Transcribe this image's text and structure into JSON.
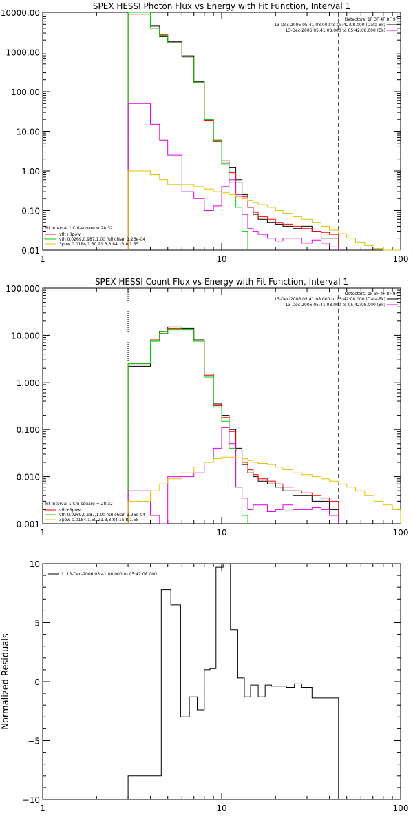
{
  "chart_data": [
    {
      "type": "line",
      "title": "SPEX HESSI Photon Flux vs Energy with Fit Function, Interval 1",
      "xscale": "log",
      "yscale": "log",
      "xlim": [
        1,
        100
      ],
      "ylim": [
        0.01,
        10000
      ],
      "xticks": [
        {
          "v": 1,
          "label": "1"
        },
        {
          "v": 10,
          "label": "10"
        },
        {
          "v": 100,
          "label": "100"
        }
      ],
      "yticks": [
        {
          "v": 10000,
          "label": "10000.00"
        },
        {
          "v": 1000,
          "label": "1000.00"
        },
        {
          "v": 100,
          "label": "100.00"
        },
        {
          "v": 10,
          "label": "10.00"
        },
        {
          "v": 1,
          "label": "1.00"
        },
        {
          "v": 0.1,
          "label": "0.10"
        },
        {
          "v": 0.01,
          "label": "0.01"
        }
      ],
      "vlines": [
        {
          "x": 3,
          "style": "dotted"
        },
        {
          "x": 45,
          "style": "dashed"
        }
      ],
      "annotations": {
        "top_right": [
          "Detectors: 1F 3F 4F 8F 9F",
          "13-Dec-2006 05:41:08.000 to 05:42:08.000 (Data-Bk)",
          "13-Dec-2006 05:41:08.000 to 05:42:08.000 (Bk)"
        ],
        "bottom_left": [
          "Fit Interval 1   Chi-square = 28.32",
          "vth+3pow",
          "vth 0.0269,0.987,1.00  full chian 1.26e-04",
          "3pow 0.0184,1.50,21.3,8.84,15.8,1.55"
        ]
      },
      "edges": [
        3,
        3.5,
        4,
        4.5,
        5,
        6,
        7,
        8,
        9,
        10,
        11,
        12,
        13,
        14,
        15,
        16,
        18,
        20,
        22,
        25,
        28,
        32,
        36,
        40,
        45,
        50,
        56,
        63,
        71,
        80,
        90,
        100
      ],
      "series": [
        {
          "name": "Data-Bk",
          "color": "#000000",
          "values": [
            9000,
            9000,
            4500,
            2500,
            1800,
            800,
            180,
            20,
            6,
            1.8,
            1.2,
            0.6,
            0.25,
            0.12,
            0.08,
            0.06,
            0.05,
            0.045,
            0.04,
            0.035,
            0.04,
            0.03,
            0.02,
            0.02
          ]
        },
        {
          "name": "vth+3pow",
          "color": "#ff0000",
          "values": [
            9000,
            9000,
            4000,
            2700,
            1700,
            750,
            170,
            19,
            5.5,
            1.6,
            0.9,
            0.5,
            0.22,
            0.12,
            0.09,
            0.07,
            0.06,
            0.05,
            0.045,
            0.04,
            0.035,
            0.03,
            0.028,
            0.025
          ]
        },
        {
          "name": "vth",
          "color": "#00d000",
          "values": [
            10000,
            10000,
            4000,
            2600,
            1700,
            750,
            170,
            20,
            6,
            1.5,
            0.5,
            0.12,
            0.03
          ]
        },
        {
          "name": "Bk",
          "color": "#e000e0",
          "values": [
            50,
            50,
            15,
            6,
            2.5,
            0.3,
            0.2,
            0.1,
            0.13,
            0.4,
            0.6,
            0.25,
            0.08,
            0.035,
            0.03,
            0.025,
            0.02,
            0.017,
            0.02,
            0.02,
            0.015,
            0.018,
            0.015,
            0.012
          ]
        },
        {
          "name": "3pow",
          "color": "#e0c000",
          "values": [
            1.0,
            1.0,
            0.8,
            0.6,
            0.45,
            0.45,
            0.4,
            0.35,
            0.3,
            0.28,
            0.25,
            0.22,
            0.2,
            0.18,
            0.16,
            0.14,
            0.12,
            0.1,
            0.085,
            0.07,
            0.06,
            0.05,
            0.04,
            0.032,
            0.026,
            0.02,
            0.016,
            0.013,
            0.011,
            0.009,
            0.008
          ]
        }
      ]
    },
    {
      "type": "line",
      "title": "SPEX HESSI Count Flux vs Energy with Fit Function, Interval 1",
      "xscale": "log",
      "yscale": "log",
      "xlim": [
        1,
        100
      ],
      "ylim": [
        0.001,
        100
      ],
      "xticks": [
        {
          "v": 1,
          "label": "1"
        },
        {
          "v": 10,
          "label": "10"
        },
        {
          "v": 100,
          "label": "100"
        }
      ],
      "yticks": [
        {
          "v": 100,
          "label": "100.000"
        },
        {
          "v": 10,
          "label": "10.000"
        },
        {
          "v": 1,
          "label": "1.000"
        },
        {
          "v": 0.1,
          "label": "0.100"
        },
        {
          "v": 0.01,
          "label": "0.010"
        },
        {
          "v": 0.001,
          "label": "0.001"
        }
      ],
      "vlines": [
        {
          "x": 3,
          "style": "dotted"
        },
        {
          "x": 45,
          "style": "dashed"
        }
      ],
      "annotations": {
        "top_right": [
          "Detectors: 1F 3F 4F 8F 9F",
          "13-Dec-2006 05:41:08.000 to 05:42:08.000 (Data-Bk)",
          "13-Dec-2006 05:41:08.000 to 05:42:08.000 (Bk)"
        ],
        "bottom_left": [
          "Fit Interval 1   Chi-square = 28.32",
          "vth+3pow",
          "vth 0.0269,0.987,1.00  full chian 1.26e-04",
          "3pow 0.0184,1.50,21.3,8.84,15.8,1.55"
        ]
      },
      "edges": [
        3,
        3.5,
        4,
        4.5,
        5,
        6,
        7,
        8,
        9,
        10,
        11,
        12,
        13,
        14,
        15,
        16,
        18,
        20,
        22,
        25,
        28,
        32,
        36,
        40,
        45,
        50,
        56,
        63,
        71,
        80,
        90,
        100
      ],
      "series": [
        {
          "name": "Data-Bk",
          "color": "#000000",
          "values": [
            2.2,
            2.2,
            7.5,
            12,
            15,
            14,
            8,
            1.5,
            0.35,
            0.2,
            0.1,
            0.04,
            0.018,
            0.012,
            0.01,
            0.008,
            0.007,
            0.006,
            0.005,
            0.004,
            0.004,
            0.003,
            0.003,
            0.002
          ]
        },
        {
          "name": "vth+3pow",
          "color": "#ff0000",
          "values": [
            2.5,
            2.5,
            8,
            11,
            14,
            13.5,
            7.5,
            1.4,
            0.32,
            0.18,
            0.09,
            0.035,
            0.02,
            0.014,
            0.011,
            0.009,
            0.008,
            0.007,
            0.006,
            0.005,
            0.0045,
            0.004,
            0.0035,
            0.003
          ]
        },
        {
          "name": "vth",
          "color": "#00d000",
          "values": [
            2.5,
            2.5,
            7.5,
            11,
            13,
            13,
            7.5,
            1.3,
            0.3,
            0.15,
            0.04,
            0.006,
            0.0015
          ]
        },
        {
          "name": "Bk",
          "color": "#e000e0",
          "values": [
            0.005,
            0.005,
            0.0015,
            0.001,
            0.01,
            0.01,
            0.012,
            0.02,
            0.04,
            0.11,
            0.05,
            0.006,
            0.0035,
            0.002,
            0.0025,
            0.0025,
            0.0018,
            0.002,
            0.0025,
            0.002,
            0.002,
            0.0022,
            0.002,
            0.0015
          ]
        },
        {
          "name": "3pow",
          "color": "#e0c000",
          "values": [
            0.003,
            0.003,
            0.005,
            0.007,
            0.009,
            0.012,
            0.016,
            0.02,
            0.024,
            0.026,
            0.026,
            0.025,
            0.024,
            0.022,
            0.02,
            0.019,
            0.018,
            0.016,
            0.014,
            0.012,
            0.011,
            0.01,
            0.009,
            0.008,
            0.007,
            0.006,
            0.005,
            0.004,
            0.003,
            0.0025,
            0.002
          ]
        }
      ]
    },
    {
      "type": "line",
      "title": "",
      "xscale": "log",
      "yscale": "linear",
      "xlim": [
        1,
        100
      ],
      "ylim": [
        -10,
        10
      ],
      "ylabel": "Normalized Residuals",
      "xticks": [
        {
          "v": 1,
          "label": "1"
        },
        {
          "v": 10,
          "label": "10"
        },
        {
          "v": 100,
          "label": "100"
        }
      ],
      "yticks": [
        {
          "v": 10,
          "label": "10"
        },
        {
          "v": 5,
          "label": "5"
        },
        {
          "v": 0,
          "label": "0"
        },
        {
          "v": -5,
          "label": "−5"
        },
        {
          "v": -10,
          "label": "−10"
        }
      ],
      "legend": "1. 13-Dec-2006 05:41:08.000 to 05:42:08.000",
      "edges": [
        3,
        4.2,
        4.6,
        5.2,
        5.9,
        6.6,
        7.3,
        8,
        8.6,
        9.3,
        10.2,
        11.2,
        12.3,
        13.4,
        14.5,
        16,
        17.5,
        19,
        21,
        23,
        25.5,
        28,
        32,
        35,
        38.5,
        42,
        45
      ],
      "series": [
        {
          "name": "residuals",
          "color": "#000000",
          "values": [
            -8,
            -8,
            7.8,
            6.5,
            -3,
            -1.3,
            -2.4,
            1,
            1.1,
            9.7,
            10,
            4.4,
            0.3,
            -1.3,
            -0.3,
            -1.3,
            -0.3,
            -0.4,
            -0.4,
            -0.5,
            -0.2,
            -0.5,
            -1.4,
            -1.4,
            -1.4,
            -1.4
          ]
        }
      ]
    }
  ]
}
